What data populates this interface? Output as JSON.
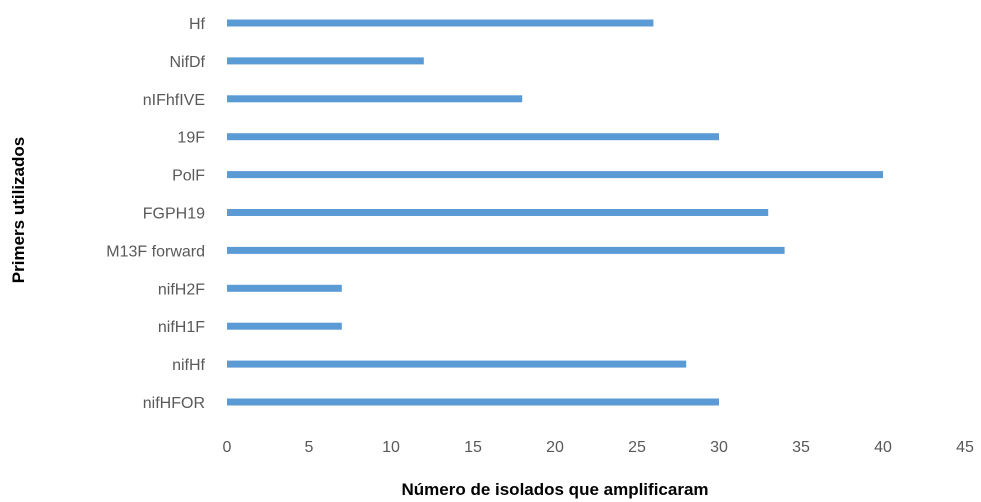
{
  "chart_data": {
    "type": "bar",
    "orientation": "horizontal",
    "categories": [
      "nifHFOR",
      "nifHf",
      "nifH1F",
      "nifH2F",
      "M13F forward",
      "FGPH19",
      "PolF",
      "19F",
      "nIFhfIVE",
      "NifDf",
      "Hf"
    ],
    "values": [
      30,
      28,
      7,
      7,
      34,
      33,
      40,
      30,
      18,
      12,
      26
    ],
    "xlabel": "Número de isolados que amplificaram",
    "ylabel": "Primers utilizados",
    "xlim": [
      0,
      45
    ],
    "xticks": [
      0,
      5,
      10,
      15,
      20,
      25,
      30,
      35,
      40,
      45
    ],
    "grid": false,
    "legend": "none",
    "bar_color": "#5B9BD5"
  }
}
